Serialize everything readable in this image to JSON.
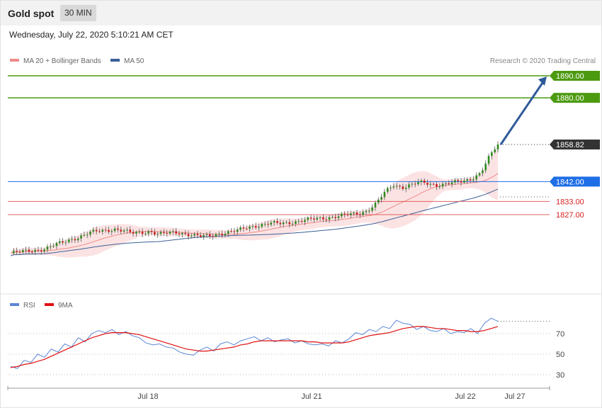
{
  "header": {
    "instrument": "Gold spot",
    "timeframe": "30 MIN"
  },
  "timestamp": "Wednesday, July 22, 2020 5:10:21 AM CET",
  "legend": {
    "main": [
      {
        "label": "MA 20 + Bollinger Bands",
        "color": "#f08a8a"
      },
      {
        "label": "MA 50",
        "color": "#3a5f96"
      }
    ],
    "rsi": [
      {
        "label": "RSI",
        "color": "#5b86d6"
      },
      {
        "label": "9MA",
        "color": "#e01010"
      }
    ]
  },
  "credit": "Research © 2020 Trading Central",
  "chart_data": [
    {
      "type": "candlestick",
      "title": "Gold spot",
      "ylim": [
        1808,
        1896
      ],
      "levels": [
        {
          "value": 1890.0,
          "label": "1890.00",
          "kind": "target",
          "color": "#4c9a10"
        },
        {
          "value": 1880.0,
          "label": "1880.00",
          "kind": "target",
          "color": "#4c9a10"
        },
        {
          "value": 1858.82,
          "label": "1858.82",
          "kind": "last-price",
          "color": "#333333"
        },
        {
          "value": 1842.0,
          "label": "1842.00",
          "kind": "pivot",
          "color": "#1e6ee6"
        },
        {
          "value": 1833.0,
          "label": "1833.00",
          "kind": "support",
          "color": "#e06060"
        },
        {
          "value": 1827.0,
          "label": "1827.00",
          "kind": "support",
          "color": "#e06060"
        }
      ],
      "x_ticks": [
        "Jul 18",
        "Jul 21",
        "Jul 22",
        "Jul 27"
      ],
      "close_path": [
        1809.5,
        1810,
        1810.5,
        1811,
        1811.5,
        1813,
        1814.5,
        1816,
        1817,
        1818.5,
        1819.5,
        1820,
        1820.5,
        1819.5,
        1818.5,
        1819,
        1819.5,
        1818,
        1818.5,
        1819,
        1818.5,
        1817.5,
        1817,
        1817.5,
        1818.5,
        1819,
        1819.5,
        1821,
        1822,
        1822.5,
        1823,
        1823,
        1823.5,
        1824,
        1824.5,
        1825,
        1825.5,
        1826,
        1826.5,
        1827,
        1827.5,
        1829,
        1832,
        1837,
        1840.5,
        1839.5,
        1840.5,
        1841.5,
        1841,
        1840.5,
        1841,
        1841.5,
        1842,
        1843.5,
        1846,
        1853,
        1858.82
      ],
      "arrow": {
        "from": 1858.82,
        "to": 1890.0
      }
    },
    {
      "type": "line",
      "title": "RSI",
      "ylim": [
        20,
        90
      ],
      "y_ticks": [
        30,
        50,
        70
      ],
      "series": [
        {
          "name": "RSI",
          "values": [
            38,
            36,
            44,
            42,
            50,
            47,
            55,
            52,
            60,
            57,
            66,
            62,
            70,
            73,
            71,
            74,
            69,
            72,
            68,
            66,
            61,
            59,
            60,
            57,
            56,
            52,
            50,
            49,
            54,
            57,
            53,
            60,
            62,
            59,
            63,
            65,
            67,
            63,
            66,
            62,
            64,
            65,
            61,
            63,
            60,
            59,
            60,
            58,
            63,
            61,
            65,
            71,
            69,
            74,
            72,
            77,
            75,
            83,
            80,
            79,
            74,
            77,
            73,
            72,
            75,
            70,
            72,
            71,
            75,
            70,
            80,
            85,
            82
          ]
        },
        {
          "name": "9MA",
          "values": [
            37,
            38,
            40,
            41,
            43,
            45,
            48,
            51,
            54,
            57,
            60,
            63,
            66,
            68,
            70,
            71,
            71,
            71,
            70,
            69,
            67,
            65,
            63,
            61,
            59,
            57,
            55,
            54,
            53,
            53,
            54,
            55,
            56,
            57,
            59,
            60,
            62,
            63,
            63,
            63,
            63,
            63,
            63,
            63,
            62,
            62,
            61,
            61,
            61,
            61,
            62,
            64,
            66,
            68,
            69,
            70,
            71,
            73,
            75,
            76,
            77,
            77,
            76,
            75,
            75,
            74,
            73,
            73,
            72,
            72,
            73,
            75,
            77
          ]
        }
      ]
    }
  ]
}
